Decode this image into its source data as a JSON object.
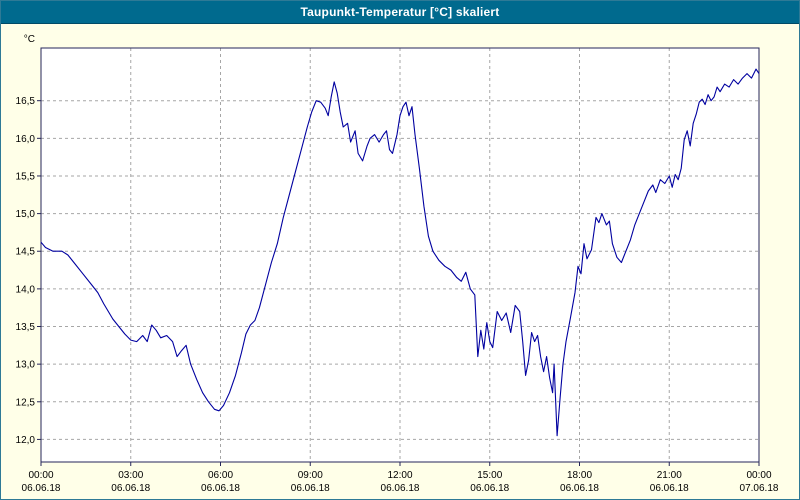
{
  "title": "Taupunkt-Temperatur [°C] skaliert",
  "colors": {
    "titlebar": "#006A8E",
    "title_text": "#FFFFFF",
    "background": "#FFFFE8",
    "plot_bg": "#FFFFFF",
    "line": "#0000A0",
    "grid": "#A6A6A6",
    "plot_border": "#25255A",
    "axis_text": "#000000"
  },
  "chart_data": {
    "type": "line",
    "title": "Taupunkt-Temperatur [°C] skaliert",
    "ylabel": "°C",
    "unit_label": "°C",
    "x_unit": "hours-of-day",
    "xlim": [
      0,
      24
    ],
    "ylim": [
      11.7,
      17.2
    ],
    "grid": true,
    "legend": "none",
    "y_ticks": {
      "values": [
        12.0,
        12.5,
        13.0,
        13.5,
        14.0,
        14.5,
        15.0,
        15.5,
        16.0,
        16.5
      ],
      "labels": [
        "12,0",
        "12,5",
        "13,0",
        "13,5",
        "14,0",
        "14,5",
        "15,0",
        "15,5",
        "16,0",
        "16,5"
      ]
    },
    "x_ticks": {
      "values": [
        0,
        3,
        6,
        9,
        12,
        15,
        18,
        21,
        24
      ],
      "time_labels": [
        "00:00",
        "03:00",
        "06:00",
        "09:00",
        "12:00",
        "15:00",
        "18:00",
        "21:00",
        "00:00"
      ],
      "date_labels": [
        "06.06.18",
        "06.06.18",
        "06.06.18",
        "06.06.18",
        "06.06.18",
        "06.06.18",
        "06.06.18",
        "06.06.18",
        "07.06.18"
      ]
    },
    "series": [
      {
        "name": "Taupunkt-Temperatur",
        "points": [
          [
            0,
            14.62
          ],
          [
            0.15,
            14.55
          ],
          [
            0.4,
            14.5
          ],
          [
            0.7,
            14.5
          ],
          [
            0.9,
            14.45
          ],
          [
            1.1,
            14.35
          ],
          [
            1.4,
            14.2
          ],
          [
            1.7,
            14.05
          ],
          [
            1.9,
            13.95
          ],
          [
            2.1,
            13.8
          ],
          [
            2.4,
            13.6
          ],
          [
            2.6,
            13.5
          ],
          [
            2.8,
            13.4
          ],
          [
            3.0,
            13.32
          ],
          [
            3.2,
            13.3
          ],
          [
            3.4,
            13.38
          ],
          [
            3.55,
            13.3
          ],
          [
            3.7,
            13.52
          ],
          [
            3.85,
            13.45
          ],
          [
            4.0,
            13.35
          ],
          [
            4.2,
            13.38
          ],
          [
            4.4,
            13.3
          ],
          [
            4.55,
            13.1
          ],
          [
            4.7,
            13.18
          ],
          [
            4.85,
            13.25
          ],
          [
            5.0,
            13.0
          ],
          [
            5.2,
            12.8
          ],
          [
            5.4,
            12.62
          ],
          [
            5.6,
            12.5
          ],
          [
            5.8,
            12.4
          ],
          [
            5.95,
            12.38
          ],
          [
            6.1,
            12.45
          ],
          [
            6.3,
            12.62
          ],
          [
            6.5,
            12.85
          ],
          [
            6.7,
            13.15
          ],
          [
            6.85,
            13.4
          ],
          [
            7.0,
            13.52
          ],
          [
            7.15,
            13.58
          ],
          [
            7.3,
            13.75
          ],
          [
            7.5,
            14.05
          ],
          [
            7.7,
            14.35
          ],
          [
            7.9,
            14.6
          ],
          [
            8.1,
            14.95
          ],
          [
            8.3,
            15.25
          ],
          [
            8.5,
            15.55
          ],
          [
            8.7,
            15.85
          ],
          [
            8.9,
            16.15
          ],
          [
            9.05,
            16.35
          ],
          [
            9.2,
            16.5
          ],
          [
            9.35,
            16.48
          ],
          [
            9.5,
            16.4
          ],
          [
            9.6,
            16.3
          ],
          [
            9.7,
            16.55
          ],
          [
            9.8,
            16.75
          ],
          [
            9.9,
            16.6
          ],
          [
            10.0,
            16.35
          ],
          [
            10.1,
            16.15
          ],
          [
            10.25,
            16.2
          ],
          [
            10.35,
            15.95
          ],
          [
            10.5,
            16.1
          ],
          [
            10.6,
            15.8
          ],
          [
            10.75,
            15.7
          ],
          [
            10.9,
            15.9
          ],
          [
            11.0,
            16.0
          ],
          [
            11.15,
            16.05
          ],
          [
            11.3,
            15.95
          ],
          [
            11.45,
            16.05
          ],
          [
            11.55,
            16.1
          ],
          [
            11.65,
            15.85
          ],
          [
            11.75,
            15.8
          ],
          [
            11.9,
            16.05
          ],
          [
            12.0,
            16.3
          ],
          [
            12.1,
            16.42
          ],
          [
            12.2,
            16.48
          ],
          [
            12.3,
            16.3
          ],
          [
            12.4,
            16.42
          ],
          [
            12.5,
            16.05
          ],
          [
            12.65,
            15.6
          ],
          [
            12.8,
            15.1
          ],
          [
            12.95,
            14.7
          ],
          [
            13.1,
            14.5
          ],
          [
            13.3,
            14.38
          ],
          [
            13.5,
            14.3
          ],
          [
            13.7,
            14.25
          ],
          [
            13.9,
            14.15
          ],
          [
            14.05,
            14.1
          ],
          [
            14.2,
            14.22
          ],
          [
            14.35,
            14.0
          ],
          [
            14.5,
            13.92
          ],
          [
            14.6,
            13.1
          ],
          [
            14.7,
            13.45
          ],
          [
            14.8,
            13.2
          ],
          [
            14.9,
            13.55
          ],
          [
            15.0,
            13.3
          ],
          [
            15.1,
            13.22
          ],
          [
            15.25,
            13.7
          ],
          [
            15.4,
            13.58
          ],
          [
            15.55,
            13.68
          ],
          [
            15.7,
            13.42
          ],
          [
            15.85,
            13.78
          ],
          [
            16.0,
            13.7
          ],
          [
            16.1,
            13.3
          ],
          [
            16.2,
            12.85
          ],
          [
            16.3,
            13.05
          ],
          [
            16.4,
            13.42
          ],
          [
            16.5,
            13.3
          ],
          [
            16.6,
            13.38
          ],
          [
            16.7,
            13.1
          ],
          [
            16.8,
            12.9
          ],
          [
            16.9,
            13.1
          ],
          [
            17.0,
            12.82
          ],
          [
            17.1,
            12.62
          ],
          [
            17.15,
            13.0
          ],
          [
            17.25,
            12.05
          ],
          [
            17.35,
            12.55
          ],
          [
            17.45,
            13.0
          ],
          [
            17.55,
            13.3
          ],
          [
            17.7,
            13.62
          ],
          [
            17.85,
            13.95
          ],
          [
            17.95,
            14.3
          ],
          [
            18.05,
            14.2
          ],
          [
            18.15,
            14.6
          ],
          [
            18.25,
            14.4
          ],
          [
            18.4,
            14.52
          ],
          [
            18.55,
            14.95
          ],
          [
            18.65,
            14.88
          ],
          [
            18.75,
            15.0
          ],
          [
            18.9,
            14.85
          ],
          [
            19.0,
            14.9
          ],
          [
            19.1,
            14.6
          ],
          [
            19.25,
            14.42
          ],
          [
            19.4,
            14.35
          ],
          [
            19.55,
            14.5
          ],
          [
            19.7,
            14.65
          ],
          [
            19.85,
            14.85
          ],
          [
            20.0,
            15.0
          ],
          [
            20.15,
            15.15
          ],
          [
            20.3,
            15.3
          ],
          [
            20.45,
            15.38
          ],
          [
            20.55,
            15.28
          ],
          [
            20.7,
            15.45
          ],
          [
            20.85,
            15.4
          ],
          [
            21.0,
            15.5
          ],
          [
            21.1,
            15.35
          ],
          [
            21.2,
            15.52
          ],
          [
            21.3,
            15.45
          ],
          [
            21.4,
            15.6
          ],
          [
            21.5,
            15.98
          ],
          [
            21.6,
            16.1
          ],
          [
            21.7,
            15.9
          ],
          [
            21.8,
            16.2
          ],
          [
            21.9,
            16.32
          ],
          [
            22.0,
            16.48
          ],
          [
            22.1,
            16.52
          ],
          [
            22.2,
            16.45
          ],
          [
            22.3,
            16.58
          ],
          [
            22.4,
            16.5
          ],
          [
            22.5,
            16.55
          ],
          [
            22.6,
            16.68
          ],
          [
            22.7,
            16.62
          ],
          [
            22.85,
            16.72
          ],
          [
            23.0,
            16.68
          ],
          [
            23.15,
            16.78
          ],
          [
            23.3,
            16.72
          ],
          [
            23.45,
            16.8
          ],
          [
            23.6,
            16.86
          ],
          [
            23.75,
            16.8
          ],
          [
            23.9,
            16.92
          ],
          [
            24.0,
            16.86
          ]
        ]
      }
    ]
  }
}
